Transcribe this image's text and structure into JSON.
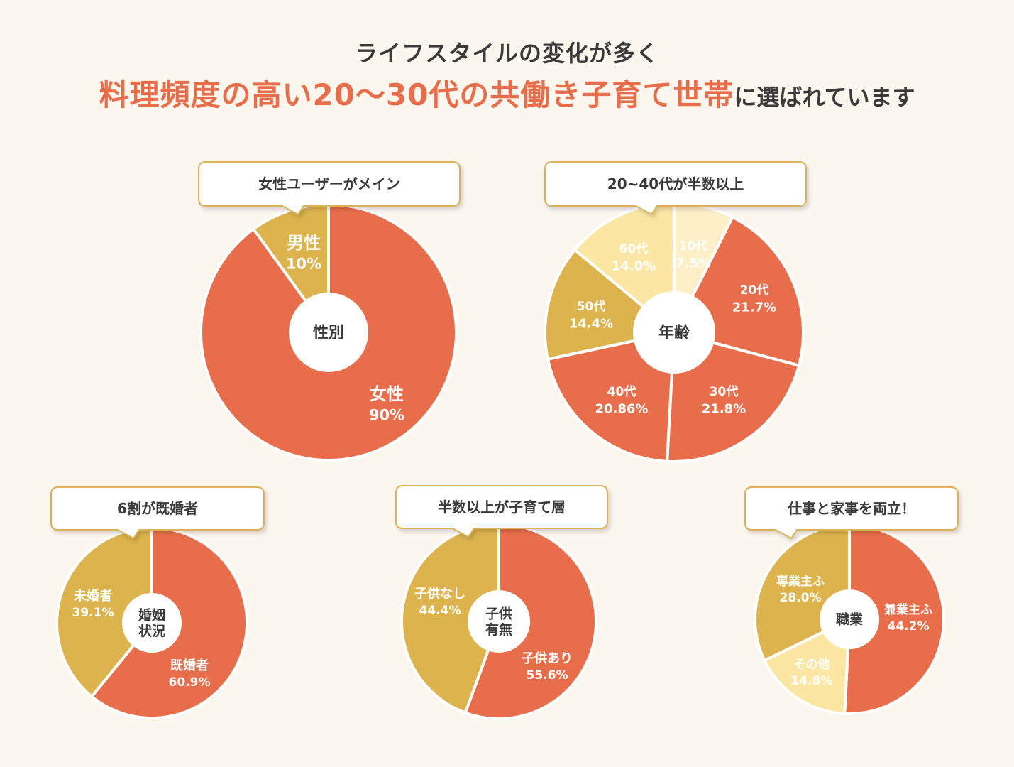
{
  "header": {
    "line1": "ライフスタイルの変化が多く",
    "line2_highlight": "料理頻度の高い20〜30代の共働き子育て世帯",
    "line2_rest": "に選ばれています"
  },
  "colors": {
    "coral": "#e86e4b",
    "mustard": "#dcb34d",
    "pale": "#fbe6a4",
    "background": "#fbf6ee",
    "text": "#3a3a3a"
  },
  "chart_data": [
    {
      "type": "pie",
      "id": "gender",
      "title": "性別",
      "callout": "女性ユーザーがメイン",
      "slices": [
        {
          "name": "女性",
          "value": 90,
          "value_label": "90%",
          "color": "#e86e4b",
          "label_color": "#ffffff"
        },
        {
          "name": "男性",
          "value": 10,
          "value_label": "10%",
          "color": "#dcb34d",
          "label_color": "#ffffff"
        }
      ]
    },
    {
      "type": "pie",
      "id": "age",
      "title": "年齢",
      "callout": "20~40代が半数以上",
      "slices": [
        {
          "name": "10代",
          "value": 7.5,
          "value_label": "7.5%",
          "color": "#fdf0c8",
          "label_color": "#ffffff"
        },
        {
          "name": "20代",
          "value": 21.7,
          "value_label": "21.7%",
          "color": "#e86e4b",
          "label_color": "#ffffff"
        },
        {
          "name": "30代",
          "value": 21.8,
          "value_label": "21.8%",
          "color": "#e86e4b",
          "label_color": "#ffffff"
        },
        {
          "name": "40代",
          "value": 20.86,
          "value_label": "20.86%",
          "color": "#e86e4b",
          "label_color": "#ffffff"
        },
        {
          "name": "50代",
          "value": 14.4,
          "value_label": "14.4%",
          "color": "#dcb34d",
          "label_color": "#ffffff"
        },
        {
          "name": "60代",
          "value": 14.0,
          "value_label": "14.0%",
          "color": "#fbe6a4",
          "label_color": "#ffffff"
        }
      ]
    },
    {
      "type": "pie",
      "id": "marital",
      "title": "婚姻\n状況",
      "callout": "6割が既婚者",
      "slices": [
        {
          "name": "既婚者",
          "value": 60.9,
          "value_label": "60.9%",
          "color": "#e86e4b",
          "label_color": "#ffffff"
        },
        {
          "name": "未婚者",
          "value": 39.1,
          "value_label": "39.1%",
          "color": "#dcb34d",
          "label_color": "#ffffff"
        }
      ]
    },
    {
      "type": "pie",
      "id": "children",
      "title": "子供\n有無",
      "callout": "半数以上が子育て層",
      "slices": [
        {
          "name": "子供あり",
          "value": 55.6,
          "value_label": "55.6%",
          "color": "#e86e4b",
          "label_color": "#ffffff"
        },
        {
          "name": "子供なし",
          "value": 44.4,
          "value_label": "44.4%",
          "color": "#dcb34d",
          "label_color": "#ffffff"
        }
      ]
    },
    {
      "type": "pie",
      "id": "occupation",
      "title": "職業",
      "callout": "仕事と家事を両立！",
      "slices": [
        {
          "name": "兼業主ふ",
          "value": 44.2,
          "value_label": "44.2%",
          "color": "#e86e4b",
          "label_color": "#ffffff"
        },
        {
          "name": "その他",
          "value": 14.8,
          "value_label": "14.8%",
          "color": "#fbe6a4",
          "label_color": "#ffffff"
        },
        {
          "name": "専業主ふ",
          "value": 28.0,
          "value_label": "28.0%",
          "color": "#dcb34d",
          "label_color": "#ffffff"
        }
      ]
    }
  ]
}
